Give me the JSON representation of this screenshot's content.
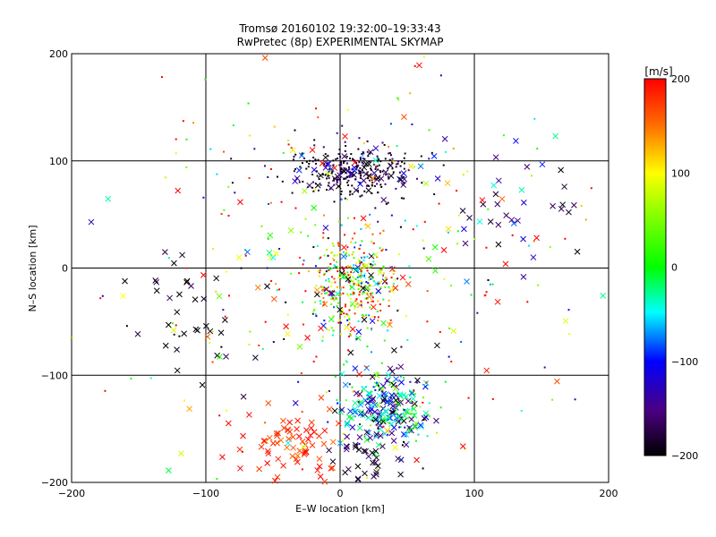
{
  "chart_data": {
    "type": "scatter",
    "title": "Tromsø 20160102 19:32:00–19:33:43",
    "subtitle": "RwPretec (8p) EXPERIMENTAL SKYMAP",
    "xlabel": "E–W location [km]",
    "ylabel": "N–S location [km]",
    "xlim": [
      -200,
      200
    ],
    "ylim": [
      -200,
      200
    ],
    "x_ticks": [
      -200,
      -100,
      0,
      100,
      200
    ],
    "y_ticks": [
      -200,
      -100,
      0,
      100,
      200
    ],
    "grid": true,
    "colorbar": {
      "label": "[m/s]",
      "range": [
        -200,
        200
      ],
      "ticks": [
        200,
        100,
        0,
        -100,
        -200
      ]
    },
    "point_groups": [
      {
        "name": "north-cluster",
        "marker": "dot",
        "count": 260,
        "cx": 12,
        "cy": 90,
        "sx": 22,
        "sy": 12,
        "vmean": -185,
        "vsd": 25
      },
      {
        "name": "north-cluster-x",
        "marker": "x",
        "count": 55,
        "cx": 18,
        "cy": 88,
        "sx": 22,
        "sy": 10,
        "vmean": -150,
        "vsd": 45
      },
      {
        "name": "center-cluster",
        "marker": "dot",
        "count": 340,
        "cx": 8,
        "cy": -15,
        "sx": 16,
        "sy": 25,
        "vmean": 80,
        "vsd": 110
      },
      {
        "name": "center-cluster-x",
        "marker": "x",
        "count": 45,
        "cx": 10,
        "cy": -15,
        "sx": 18,
        "sy": 25,
        "vmean": -50,
        "vsd": 140
      },
      {
        "name": "southeast-cluster",
        "marker": "x",
        "count": 150,
        "cx": 35,
        "cy": -130,
        "sx": 15,
        "sy": 15,
        "vmean": -80,
        "vsd": 70
      },
      {
        "name": "southeast-cluster-dot",
        "marker": "dot",
        "count": 90,
        "cx": 35,
        "cy": -130,
        "sx": 18,
        "sy": 18,
        "vmean": -60,
        "vsd": 80
      },
      {
        "name": "southwest-cluster",
        "marker": "x",
        "count": 70,
        "cx": -40,
        "cy": -165,
        "sx": 20,
        "sy": 18,
        "vmean": 185,
        "vsd": 20
      },
      {
        "name": "south-center-cluster",
        "marker": "x",
        "count": 40,
        "cx": 20,
        "cy": -175,
        "sx": 12,
        "sy": 15,
        "vmean": -185,
        "vsd": 20
      },
      {
        "name": "west-cluster",
        "marker": "x",
        "count": 30,
        "cx": -115,
        "cy": -40,
        "sx": 25,
        "sy": 30,
        "vmean": -190,
        "vsd": 15
      },
      {
        "name": "east-cluster",
        "marker": "x",
        "count": 35,
        "cx": 130,
        "cy": 60,
        "sx": 25,
        "sy": 25,
        "vmean": -150,
        "vsd": 50
      },
      {
        "name": "scattered-dots",
        "marker": "dot",
        "count": 260,
        "cx": 0,
        "cy": 0,
        "sx": 100,
        "sy": 100,
        "vmean": 60,
        "vsd": 150
      },
      {
        "name": "scattered-x",
        "marker": "x",
        "count": 90,
        "cx": 0,
        "cy": -20,
        "sx": 90,
        "sy": 90,
        "vmean": 60,
        "vsd": 150
      }
    ]
  }
}
